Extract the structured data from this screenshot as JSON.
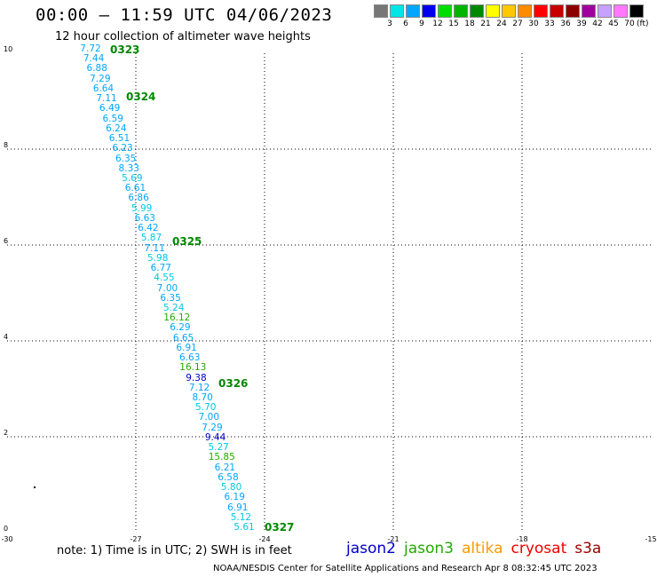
{
  "title": "00:00 – 11:59 UTC 04/06/2023",
  "subtitle": "12 hour collection of altimeter wave heights",
  "color_scale": {
    "labels": [
      "3",
      "6",
      "9",
      "12",
      "15",
      "18",
      "21",
      "24",
      "27",
      "30",
      "33",
      "36",
      "39",
      "42",
      "45",
      "70"
    ],
    "unit": "(ft)",
    "colors": [
      "#777777",
      "#00e5e5",
      "#00a6ff",
      "#0000ee",
      "#00dd00",
      "#00b400",
      "#008800",
      "#ffff00",
      "#ffc800",
      "#ff8c00",
      "#ff0000",
      "#c80000",
      "#8c0000",
      "#a000a0",
      "#c8a0ff",
      "#ff78ff",
      "#000000"
    ]
  },
  "axes": {
    "x_ticks": [
      "-30",
      "-27",
      "-24",
      "-21",
      "-18",
      "-15"
    ],
    "y_ticks": [
      "0",
      "2",
      "4",
      "6",
      "8",
      "10"
    ]
  },
  "track": [
    {
      "v": "7.72",
      "c": "#00a6ff"
    },
    {
      "v": "7.44",
      "c": "#00a6ff"
    },
    {
      "v": "6.88",
      "c": "#00a6ff"
    },
    {
      "v": "7.29",
      "c": "#00a6ff"
    },
    {
      "v": "6.64",
      "c": "#00a6ff"
    },
    {
      "v": "7.11",
      "c": "#00a6ff"
    },
    {
      "v": "6.49",
      "c": "#00a6ff"
    },
    {
      "v": "6.59",
      "c": "#00a6ff"
    },
    {
      "v": "6.24",
      "c": "#00a6ff"
    },
    {
      "v": "6.51",
      "c": "#00a6ff"
    },
    {
      "v": "6.23",
      "c": "#00a6ff"
    },
    {
      "v": "6.35",
      "c": "#00a6ff"
    },
    {
      "v": "8.33",
      "c": "#00a6ff"
    },
    {
      "v": "5.69",
      "c": "#00c8e5"
    },
    {
      "v": "6.61",
      "c": "#00a6ff"
    },
    {
      "v": "6.86",
      "c": "#00a6ff"
    },
    {
      "v": "5.99",
      "c": "#00c8e5"
    },
    {
      "v": "6.63",
      "c": "#00a6ff"
    },
    {
      "v": "6.42",
      "c": "#00a6ff"
    },
    {
      "v": "5.87",
      "c": "#00c8e5"
    },
    {
      "v": "7.11",
      "c": "#00a6ff"
    },
    {
      "v": "5.98",
      "c": "#00c8e5"
    },
    {
      "v": "6.77",
      "c": "#00a6ff"
    },
    {
      "v": "4.55",
      "c": "#00c8e5"
    },
    {
      "v": "7.00",
      "c": "#00a6ff"
    },
    {
      "v": "6.35",
      "c": "#00a6ff"
    },
    {
      "v": "5.24",
      "c": "#00c8e5"
    },
    {
      "v": "16.12",
      "c": "#22aa00"
    },
    {
      "v": "6.29",
      "c": "#00a6ff"
    },
    {
      "v": "6.65",
      "c": "#00a6ff"
    },
    {
      "v": "6.91",
      "c": "#00a6ff"
    },
    {
      "v": "6.63",
      "c": "#00a6ff"
    },
    {
      "v": "16.13",
      "c": "#22aa00"
    },
    {
      "v": "9.38",
      "c": "#0000cc"
    },
    {
      "v": "7.12",
      "c": "#00a6ff"
    },
    {
      "v": "8.70",
      "c": "#00a6ff"
    },
    {
      "v": "5.70",
      "c": "#00c8e5"
    },
    {
      "v": "7.00",
      "c": "#00a6ff"
    },
    {
      "v": "7.29",
      "c": "#00a6ff"
    },
    {
      "v": "9.44",
      "c": "#0000cc"
    },
    {
      "v": "5.27",
      "c": "#00c8e5"
    },
    {
      "v": "15.85",
      "c": "#22aa00"
    },
    {
      "v": "6.21",
      "c": "#00a6ff"
    },
    {
      "v": "6.58",
      "c": "#00a6ff"
    },
    {
      "v": "5.80",
      "c": "#00c8e5"
    },
    {
      "v": "6.19",
      "c": "#00a6ff"
    },
    {
      "v": "6.91",
      "c": "#00a6ff"
    },
    {
      "v": "5.12",
      "c": "#00c8e5"
    },
    {
      "v": "5.61",
      "c": "#00c8e5"
    }
  ],
  "date_markers": [
    "0323",
    "0324",
    "0325",
    "0326",
    "0327"
  ],
  "marker_color": "#008800",
  "note": "note: 1) Time is in UTC; 2) SWH is in feet",
  "legend": [
    {
      "name": "jason2",
      "color": "#0000cc"
    },
    {
      "name": "jason3",
      "color": "#22aa00"
    },
    {
      "name": "altika",
      "color": "#ff9900"
    },
    {
      "name": "cryosat",
      "color": "#ee0000"
    },
    {
      "name": "s3a",
      "color": "#990000"
    }
  ],
  "footer": "NOAA/NESDIS Center for Satellite Applications and Research   Apr  8 08:32:45 UTC 2023"
}
